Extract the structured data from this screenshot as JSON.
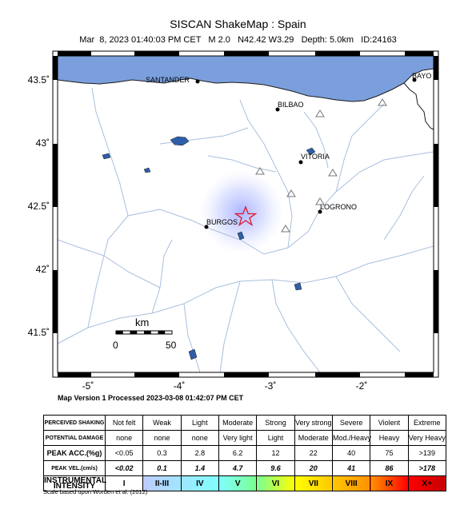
{
  "header": {
    "title": "SISCAN ShakeMap : Spain",
    "subtitle": "Mar  8, 2023 01:40:03 PM CET   M 2.0   N42.42 W3.29   Depth: 5.0km   ID:24163"
  },
  "map": {
    "lat_labels": [
      "43.5˚",
      "43˚",
      "42.5˚",
      "42˚",
      "41.5˚"
    ],
    "lon_labels": [
      "-5˚",
      "-4˚",
      "-3˚",
      "-2˚"
    ],
    "cities": [
      {
        "name": "SANTANDER"
      },
      {
        "name": "BAYO"
      },
      {
        "name": "BILBAO"
      },
      {
        "name": "VITORIA"
      },
      {
        "name": "LOGRONO"
      },
      {
        "name": "BURGOS"
      }
    ],
    "scale_bar": {
      "unit": "km",
      "start": "0",
      "end": "50"
    },
    "version": "Map Version 1 Processed 2023-03-08 01:42:07 PM CET",
    "colors": {
      "sea": "#7b9fdc",
      "river": "#a9bfdd",
      "epicenter": "#e0162b",
      "shaking": "#9aa9ff"
    }
  },
  "legend": {
    "rows": [
      {
        "label": "PERCEIVED SHAKING",
        "cells": [
          "Not felt",
          "Weak",
          "Light",
          "Moderate",
          "Strong",
          "Very strong",
          "Severe",
          "Violent",
          "Extreme"
        ]
      },
      {
        "label": "POTENTIAL DAMAGE",
        "cells": [
          "none",
          "none",
          "none",
          "Very light",
          "Light",
          "Moderate",
          "Mod./Heavy",
          "Heavy",
          "Very Heavy"
        ]
      },
      {
        "label": "PEAK ACC.(%g)",
        "cells": [
          "<0.05",
          "0.3",
          "2.8",
          "6.2",
          "12",
          "22",
          "40",
          "75",
          ">139"
        ]
      },
      {
        "label": "PEAK VEL.(cm/s)",
        "cells": [
          "<0.02",
          "0.1",
          "1.4",
          "4.7",
          "9.6",
          "20",
          "41",
          "86",
          ">178"
        ]
      },
      {
        "label": "INSTRUMENTAL INTENSITY",
        "cells": [
          "I",
          "II-III",
          "IV",
          "V",
          "VI",
          "VII",
          "VIII",
          "IX",
          "X+"
        ]
      }
    ],
    "mmi_colors": [
      "#ffffff",
      "#bfccff",
      "#a0e6ff",
      "#80ffff",
      "#7aff93",
      "#ffff00",
      "#ffc800",
      "#ff9100",
      "#ff0000",
      "#c80000"
    ],
    "note": "Scale based upon Worden et al. (2012)"
  }
}
